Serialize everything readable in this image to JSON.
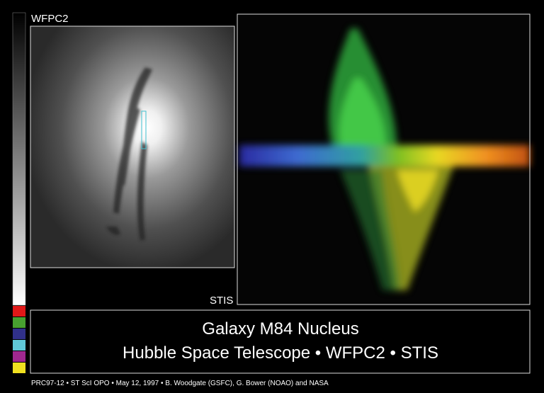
{
  "labels": {
    "left_panel": "WFPC2",
    "right_panel": "STIS"
  },
  "title": {
    "line1": "Galaxy M84 Nucleus",
    "line2": "Hubble Space Telescope • WFPC2 • STIS"
  },
  "credit": "PRC97-12 • ST ScI OPO • May 12, 1997 • B. Woodgate (GSFC), G. Bower (NOAO) and NASA"
}
